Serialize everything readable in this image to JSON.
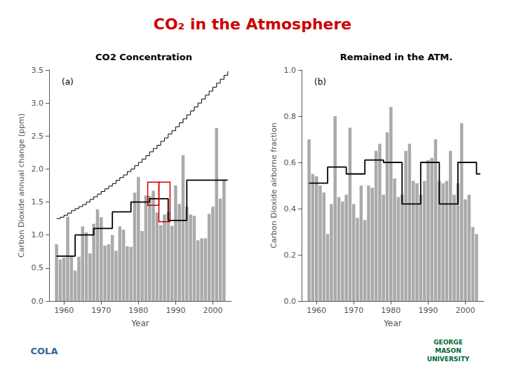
{
  "title": "CO₂ in the Atmosphere",
  "annotations": [
    "COLA",
    "GEORGE\nMASON\nUNIVERSITY"
  ],
  "chart_data": [
    {
      "type": "bar",
      "title": "CO2 Concentration",
      "annotation": "(a)",
      "xlabel": "Year",
      "ylabel": "Carbon Dioxide annual change (ppm)",
      "xlim": [
        1956,
        2005
      ],
      "xticks": [
        1960,
        1970,
        1980,
        1990,
        2000
      ],
      "ylim": [
        0,
        3.5
      ],
      "yticks": [
        {
          "value": 0,
          "label": "0.0"
        },
        0.5,
        {
          "value": 1.0,
          "label": "1.0"
        },
        1.5,
        {
          "value": 2.0,
          "label": "2.0"
        },
        2.5,
        {
          "value": 3.0,
          "label": "3.0"
        },
        3.5
      ],
      "grid": false,
      "series": [
        {
          "type": "bar",
          "color": "#aaaaaa",
          "x": [
            1958,
            1959,
            1960,
            1961,
            1962,
            1963,
            1964,
            1965,
            1966,
            1967,
            1968,
            1969,
            1970,
            1971,
            1972,
            1973,
            1974,
            1975,
            1976,
            1977,
            1978,
            1979,
            1980,
            1981,
            1982,
            1983,
            1984,
            1985,
            1986,
            1987,
            1988,
            1989,
            1990,
            1991,
            1992,
            1993,
            1994,
            1995,
            1996,
            1997,
            1998,
            1999,
            2000,
            2001,
            2002,
            2003
          ],
          "values": [
            0.86,
            0.63,
            0.66,
            1.28,
            0.68,
            0.46,
            0.67,
            1.13,
            1.04,
            0.72,
            1.17,
            1.39,
            1.27,
            0.84,
            0.86,
            1.0,
            0.76,
            1.13,
            1.08,
            0.83,
            0.82,
            1.64,
            1.88,
            1.06,
            1.6,
            1.59,
            1.67,
            1.34,
            1.15,
            1.31,
            1.35,
            1.14,
            1.75,
            1.47,
            2.21,
            1.43,
            1.31,
            1.29,
            0.92,
            0.95,
            0.95,
            1.32,
            1.43,
            2.62,
            1.55,
            1.84
          ]
        },
        {
          "type": "step",
          "color": "#000000",
          "x": [
            1958,
            1959,
            1960,
            1961,
            1962,
            1963,
            1964,
            1965,
            1966,
            1967,
            1968,
            1969,
            1970,
            1971,
            1972,
            1973,
            1974,
            1975,
            1976,
            1977,
            1978,
            1979,
            1980,
            1981,
            1982,
            1983,
            1984,
            1985,
            1986,
            1987,
            1988,
            1989,
            1990,
            1991,
            1992,
            1993,
            1994,
            1995,
            1996,
            1997,
            1998,
            1999,
            2000,
            2001,
            2002,
            2003,
            2004
          ],
          "values": [
            1.25,
            1.27,
            1.3,
            1.33,
            1.37,
            1.4,
            1.43,
            1.46,
            1.5,
            1.54,
            1.58,
            1.62,
            1.66,
            1.7,
            1.74,
            1.78,
            1.83,
            1.87,
            1.91,
            1.96,
            2.0,
            2.05,
            2.1,
            2.15,
            2.2,
            2.26,
            2.31,
            2.36,
            2.42,
            2.47,
            2.53,
            2.58,
            2.64,
            2.7,
            2.76,
            2.82,
            2.88,
            2.94,
            3.0,
            3.06,
            3.12,
            3.18,
            3.24,
            3.3,
            3.36,
            3.42,
            3.48
          ]
        },
        {
          "type": "step",
          "color": "#000000",
          "x": [
            1958,
            1963,
            1968,
            1973,
            1978,
            1983,
            1988,
            1993,
            1998,
            2003,
            2004
          ],
          "values": [
            0.68,
            1.0,
            1.1,
            1.35,
            1.5,
            1.55,
            1.22,
            1.83,
            1.83,
            1.83,
            1.83
          ]
        },
        {
          "type": "rect",
          "color": "#cc0000",
          "rects": [
            {
              "x": 1982.5,
              "y": 1.45,
              "w": 3.0,
              "h": 0.35
            },
            {
              "x": 1985.5,
              "y": 1.2,
              "w": 3.0,
              "h": 0.6
            }
          ]
        }
      ]
    },
    {
      "type": "bar",
      "title": "Remained in the ATM.",
      "annotation": "(b)",
      "xlabel": "Year",
      "ylabel": "Carbon Dioxide airborne fraction",
      "xlim": [
        1956,
        2005
      ],
      "xticks": [
        1960,
        1970,
        1980,
        1990,
        2000
      ],
      "ylim": [
        0,
        1.0
      ],
      "yticks": [
        {
          "value": 0,
          "label": "0.0"
        },
        0.2,
        0.4,
        0.6,
        0.8,
        {
          "value": 1.0,
          "label": "1.0"
        }
      ],
      "grid": false,
      "series": [
        {
          "type": "bar",
          "color": "#aaaaaa",
          "x": [
            1958,
            1959,
            1960,
            1961,
            1962,
            1963,
            1964,
            1965,
            1966,
            1967,
            1968,
            1969,
            1970,
            1971,
            1972,
            1973,
            1974,
            1975,
            1976,
            1977,
            1978,
            1979,
            1980,
            1981,
            1982,
            1983,
            1984,
            1985,
            1986,
            1987,
            1988,
            1989,
            1990,
            1991,
            1992,
            1993,
            1994,
            1995,
            1996,
            1997,
            1998,
            1999,
            2000,
            2001,
            2002,
            2003
          ],
          "values": [
            0.7,
            0.55,
            0.54,
            0.5,
            0.47,
            0.29,
            0.42,
            0.8,
            0.45,
            0.43,
            0.46,
            0.75,
            0.42,
            0.36,
            0.5,
            0.35,
            0.5,
            0.49,
            0.65,
            0.68,
            0.46,
            0.73,
            0.84,
            0.53,
            0.45,
            0.46,
            0.65,
            0.68,
            0.52,
            0.51,
            0.46,
            0.52,
            0.61,
            0.62,
            0.7,
            0.52,
            0.51,
            0.52,
            0.65,
            0.46,
            0.51,
            0.77,
            0.44,
            0.46,
            0.32,
            0.29
          ]
        },
        {
          "type": "step",
          "color": "#000000",
          "x": [
            1958,
            1963,
            1968,
            1973,
            1978,
            1983,
            1988,
            1993,
            1998,
            2003,
            2004
          ],
          "values": [
            0.51,
            0.58,
            0.55,
            0.61,
            0.6,
            0.42,
            0.6,
            0.42,
            0.6,
            0.55,
            0.55
          ]
        }
      ]
    }
  ]
}
